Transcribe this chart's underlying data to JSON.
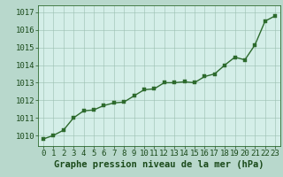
{
  "x": [
    0,
    1,
    2,
    3,
    4,
    5,
    6,
    7,
    8,
    9,
    10,
    11,
    12,
    13,
    14,
    15,
    16,
    17,
    18,
    19,
    20,
    21,
    22,
    23
  ],
  "y": [
    1009.8,
    1010.0,
    1010.3,
    1011.0,
    1011.4,
    1011.45,
    1011.7,
    1011.85,
    1011.9,
    1012.25,
    1012.6,
    1012.65,
    1013.0,
    1013.0,
    1013.05,
    1013.0,
    1013.35,
    1013.5,
    1014.0,
    1014.45,
    1014.3,
    1015.15,
    1016.5,
    1016.8
  ],
  "line_color": "#2d6a2d",
  "marker_color": "#2d6a2d",
  "bg_plot": "#d4eee8",
  "bg_figure": "#b8d8cc",
  "grid_color": "#9abfb0",
  "xlabel": "Graphe pression niveau de la mer (hPa)",
  "xlabel_color": "#1a4a1a",
  "xlabel_fontsize": 7.5,
  "xtick_labels": [
    "0",
    "1",
    "2",
    "3",
    "4",
    "5",
    "6",
    "7",
    "8",
    "9",
    "10",
    "11",
    "12",
    "13",
    "14",
    "15",
    "16",
    "17",
    "18",
    "19",
    "20",
    "21",
    "22",
    "23"
  ],
  "ytick_labels": [
    "1010",
    "1011",
    "1012",
    "1013",
    "1014",
    "1015",
    "1016",
    "1017"
  ],
  "yticks": [
    1010,
    1011,
    1012,
    1013,
    1014,
    1015,
    1016,
    1017
  ],
  "ylim": [
    1009.4,
    1017.4
  ],
  "xlim": [
    -0.5,
    23.5
  ],
  "tick_color": "#1a4a1a",
  "tick_fontsize": 6.5,
  "spine_color": "#2d6a2d",
  "linewidth": 1.0,
  "markersize": 2.5
}
